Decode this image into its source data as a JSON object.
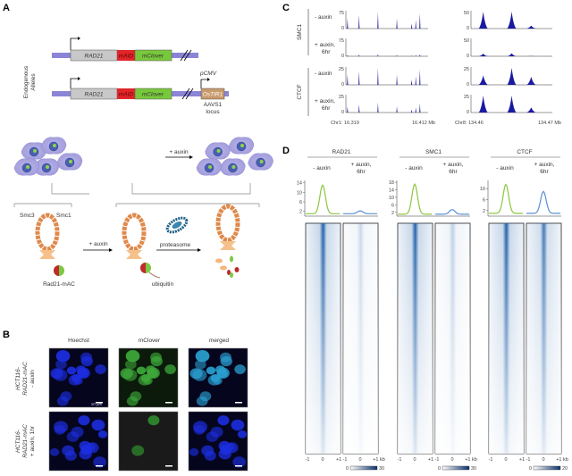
{
  "panels": {
    "a": "A",
    "b": "B",
    "c": "C",
    "d": "D"
  },
  "panel_a": {
    "side_label_1": "Endogenous",
    "side_label_2": "Alleles",
    "gene": "RAD21",
    "tag": "mAID",
    "reporter": "mClover",
    "promoter": "pCMV",
    "transgene": "OsTIR1",
    "locus_1": "AAVS1",
    "locus_2": "locus",
    "auxin_label": "+ auxin",
    "smc3": "Smc3",
    "smc1": "Smc1",
    "auxin_label_2": "+ auxin",
    "proteasome": "proteasome",
    "rad21_mac": "Rad21-mAC",
    "ubiquitin": "ubiquitin",
    "colors": {
      "chrom": "#8b85d6",
      "rad21": "#c8c8c8",
      "maid": "#e0262a",
      "mclover": "#78c83c",
      "ostir1": "#c89a6c"
    }
  },
  "panel_b": {
    "columns": [
      "Hoechst",
      "mClover",
      "merged"
    ],
    "rows": [
      {
        "line1": "HCT116-",
        "line2": "RAD21-mAC",
        "line3": "- auxin"
      },
      {
        "line1": "HCT116-",
        "line2": "RAD21-mAC",
        "line3": "+ auxin, 1hr"
      }
    ],
    "scale_bar": "10 µm"
  },
  "panel_c": {
    "groups": [
      "SMC1",
      "CTCF"
    ],
    "conditions": [
      {
        "line1": "- auxin",
        "line2": ""
      },
      {
        "line1": "+ auxin,",
        "line2": "6hr"
      },
      {
        "line1": "- auxin",
        "line2": ""
      },
      {
        "line1": "+ auxin,",
        "line2": "6hr"
      }
    ],
    "left_ymax": [
      "75",
      "75",
      "25",
      "25"
    ],
    "right_ymax": [
      "50",
      "50",
      "25",
      "25"
    ],
    "ymin": "0",
    "left_x_start": "Chr1: 16.319",
    "left_x_end": "16.412 Mb",
    "right_x_start": "Chr8: 134.46",
    "right_x_end": "134.47 Mb",
    "track_color": "#1a1aa0"
  },
  "panel_d": {
    "proteins": [
      {
        "name": "RAD21",
        "minus": "- auxin",
        "plus1": "+ auxin,",
        "plus2": "6hr",
        "yticks": [
          "14",
          "10",
          "6",
          "2"
        ],
        "peak_minus": 13,
        "peak_plus": 2.2,
        "ymax": 15,
        "cbar_min": "0",
        "cbar_max": "30",
        "plus_intensity": 0.25
      },
      {
        "name": "SMC1",
        "minus": "- auxin",
        "plus1": "+ auxin,",
        "plus2": "6hr",
        "yticks": [
          "18",
          "14",
          "10",
          "6",
          "2"
        ],
        "peak_minus": 17,
        "peak_plus": 3.5,
        "ymax": 19,
        "cbar_min": "0",
        "cbar_max": "30",
        "plus_intensity": 0.3
      },
      {
        "name": "CTCF",
        "minus": "- auxin",
        "plus1": "+ auxin,",
        "plus2": "6hr",
        "yticks": [
          "10",
          "6",
          "2"
        ],
        "peak_minus": 11.5,
        "peak_plus": 9,
        "ymax": 13,
        "cbar_min": "0",
        "cbar_max": "20",
        "plus_intensity": 0.85
      }
    ],
    "xticks": [
      "-1",
      "0",
      "+1",
      "-1",
      "0",
      "+1 kb"
    ],
    "minus_color": "#8cc63f",
    "plus_color": "#5b8fd0",
    "heat_color": "#08306b"
  }
}
